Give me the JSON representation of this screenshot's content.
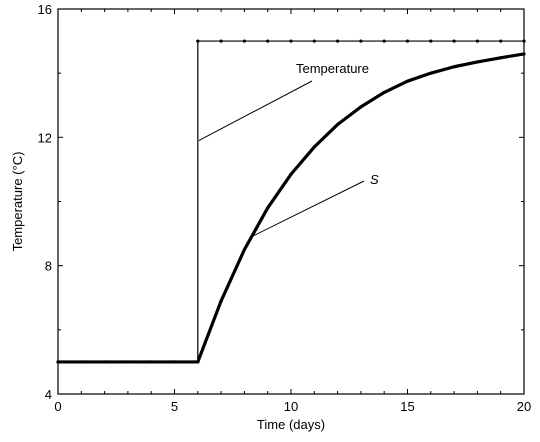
{
  "chart_data": {
    "type": "line",
    "title": "",
    "xlabel": "Time (days)",
    "ylabel": "Temperature (°C)",
    "xlim": [
      0,
      20
    ],
    "ylim": [
      4,
      16
    ],
    "xticks": [
      0,
      5,
      10,
      15,
      20
    ],
    "yticks": [
      4,
      8,
      12,
      16
    ],
    "grid": false,
    "series": [
      {
        "style": "thin-with-markers",
        "x": [
          0,
          1,
          2,
          3,
          4,
          5,
          6,
          6,
          7,
          8,
          9,
          10,
          11,
          12,
          13,
          14,
          15,
          16,
          17,
          18,
          19,
          20
        ],
        "y": [
          5,
          5,
          5,
          5,
          5,
          5,
          5,
          15,
          15,
          15,
          15,
          15,
          15,
          15,
          15,
          15,
          15,
          15,
          15,
          15,
          15,
          15
        ]
      },
      {
        "style": "thick",
        "x": [
          0,
          1,
          2,
          3,
          4,
          5,
          6,
          7,
          8,
          9,
          10,
          11,
          12,
          13,
          14,
          15,
          16,
          17,
          18,
          19,
          20
        ],
        "y": [
          5,
          5,
          5,
          5,
          5,
          5,
          5,
          6.9,
          8.5,
          9.8,
          10.85,
          11.7,
          12.4,
          12.95,
          13.4,
          13.75,
          14.0,
          14.2,
          14.35,
          14.48,
          14.6
        ]
      }
    ],
    "annotations": [
      {
        "text": "Temperature",
        "italic": false,
        "points_to": {
          "x": 6.0,
          "y": 11.9
        }
      },
      {
        "text": "S",
        "italic": true,
        "points_to": {
          "x": 8.3,
          "y": 8.9
        }
      }
    ]
  }
}
